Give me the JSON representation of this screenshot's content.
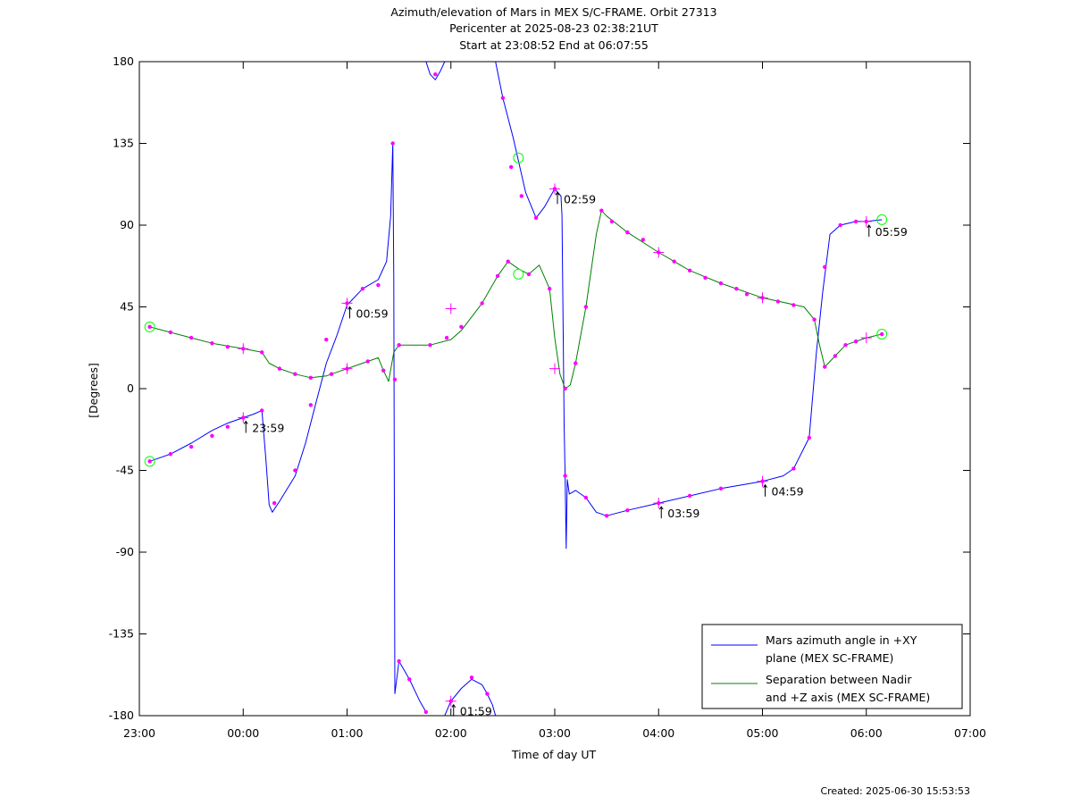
{
  "title_lines": [
    "Azimuth/elevation of Mars in MEX S/C-FRAME.  Orbit 27313",
    "Pericenter at 2025-08-23 02:38:21UT",
    "Start at 23:08:52 End at 06:07:55"
  ],
  "footer": "Created: 2025-06-30 15:53:53",
  "colors": {
    "azimuth": "#0000ff",
    "separation": "#008000",
    "markers": "#ff00ff",
    "endpoints": "#00ff00"
  },
  "chart_data": {
    "type": "line",
    "xlabel": "Time of day UT",
    "ylabel": "[Degrees]",
    "xlim": [
      23.0,
      31.0
    ],
    "ylim": [
      -180,
      180
    ],
    "xticks": [
      {
        "v": 23,
        "label": "23:00"
      },
      {
        "v": 24,
        "label": "00:00"
      },
      {
        "v": 25,
        "label": "01:00"
      },
      {
        "v": 26,
        "label": "02:00"
      },
      {
        "v": 27,
        "label": "03:00"
      },
      {
        "v": 28,
        "label": "04:00"
      },
      {
        "v": 29,
        "label": "05:00"
      },
      {
        "v": 30,
        "label": "06:00"
      },
      {
        "v": 31,
        "label": "07:00"
      }
    ],
    "yticks": [
      {
        "v": 180,
        "label": "180"
      },
      {
        "v": 135,
        "label": "135"
      },
      {
        "v": 90,
        "label": "90"
      },
      {
        "v": 45,
        "label": "45"
      },
      {
        "v": 0,
        "label": "0"
      },
      {
        "v": -45,
        "label": "-45"
      },
      {
        "v": -90,
        "label": "-90"
      },
      {
        "v": -135,
        "label": "-135"
      },
      {
        "v": -180,
        "label": "-180"
      }
    ],
    "legend": {
      "placement": "bottom-right",
      "entries": [
        {
          "series": "azimuth",
          "lines": [
            "Mars azimuth angle in +XY",
            "plane (MEX SC-FRAME)"
          ]
        },
        {
          "series": "separation",
          "lines": [
            "Separation between Nadir",
            "and +Z axis (MEX SC-FRAME)"
          ]
        }
      ]
    },
    "series": [
      {
        "key": "azimuth",
        "segments": [
          [
            [
              23.1,
              -40
            ],
            [
              23.3,
              -36
            ],
            [
              23.5,
              -30
            ],
            [
              23.7,
              -23
            ],
            [
              23.85,
              -19
            ],
            [
              24.0,
              -16
            ],
            [
              24.1,
              -14
            ],
            [
              24.18,
              -12
            ],
            [
              24.22,
              -40
            ],
            [
              24.25,
              -64
            ],
            [
              24.28,
              -68
            ],
            [
              24.35,
              -62
            ],
            [
              24.5,
              -48
            ],
            [
              24.6,
              -30
            ],
            [
              24.7,
              -8
            ],
            [
              24.8,
              14
            ],
            [
              24.9,
              29
            ],
            [
              25.0,
              46
            ],
            [
              25.15,
              55
            ],
            [
              25.3,
              60
            ],
            [
              25.38,
              70
            ],
            [
              25.42,
              95
            ],
            [
              25.44,
              135
            ],
            [
              25.45,
              60
            ],
            [
              25.46,
              -168
            ]
          ],
          [
            [
              25.46,
              -168
            ],
            [
              25.5,
              -150
            ],
            [
              25.6,
              -160
            ],
            [
              25.7,
              -172
            ],
            [
              25.76,
              -178
            ]
          ],
          [
            [
              25.76,
              180
            ],
            [
              25.8,
              173
            ],
            [
              25.85,
              170
            ],
            [
              25.9,
              175
            ],
            [
              25.94,
              180
            ]
          ],
          [
            [
              25.94,
              -180
            ],
            [
              26.0,
              -172
            ],
            [
              26.1,
              -165
            ],
            [
              26.2,
              -160
            ],
            [
              26.3,
              -163
            ],
            [
              26.35,
              -168
            ],
            [
              26.4,
              -174
            ],
            [
              26.43,
              -180
            ]
          ],
          [
            [
              26.43,
              180
            ],
            [
              26.5,
              160
            ],
            [
              26.6,
              138
            ],
            [
              26.72,
              108
            ],
            [
              26.82,
              94
            ],
            [
              26.9,
              100
            ],
            [
              27.0,
              110
            ],
            [
              27.06,
              106
            ],
            [
              27.07,
              95
            ],
            [
              27.09,
              -20
            ],
            [
              27.1,
              -48
            ],
            [
              27.11,
              -88
            ],
            [
              27.12,
              -50
            ],
            [
              27.14,
              -58
            ],
            [
              27.2,
              -56
            ],
            [
              27.3,
              -60
            ],
            [
              27.4,
              -68
            ],
            [
              27.5,
              -70
            ],
            [
              27.7,
              -67
            ],
            [
              28.0,
              -63
            ],
            [
              28.3,
              -59
            ],
            [
              28.6,
              -55
            ],
            [
              29.0,
              -51
            ],
            [
              29.2,
              -48
            ],
            [
              29.3,
              -44
            ],
            [
              29.45,
              -27
            ],
            [
              29.52,
              20
            ],
            [
              29.58,
              53
            ],
            [
              29.65,
              85
            ],
            [
              29.75,
              90
            ],
            [
              29.9,
              92
            ],
            [
              30.0,
              92
            ],
            [
              30.15,
              93
            ]
          ]
        ],
        "markers": [
          [
            23.1,
            -40
          ],
          [
            23.3,
            -36
          ],
          [
            23.5,
            -32
          ],
          [
            23.7,
            -26
          ],
          [
            23.85,
            -21
          ],
          [
            24.0,
            -16
          ],
          [
            24.18,
            -12
          ],
          [
            24.3,
            -63
          ],
          [
            24.5,
            -45
          ],
          [
            24.65,
            -9
          ],
          [
            24.8,
            27
          ],
          [
            25.0,
            47
          ],
          [
            25.15,
            55
          ],
          [
            25.3,
            57
          ],
          [
            25.44,
            135
          ],
          [
            25.46,
            5
          ],
          [
            25.5,
            -150
          ],
          [
            25.6,
            -160
          ],
          [
            25.76,
            -178
          ],
          [
            25.85,
            173
          ],
          [
            26.0,
            -172
          ],
          [
            26.2,
            -159
          ],
          [
            26.35,
            -168
          ],
          [
            26.5,
            160
          ],
          [
            26.58,
            122
          ],
          [
            26.68,
            106
          ],
          [
            26.82,
            94
          ],
          [
            27.0,
            110
          ],
          [
            27.1,
            -48
          ],
          [
            27.3,
            -60
          ],
          [
            27.5,
            -70
          ],
          [
            27.7,
            -67
          ],
          [
            28.0,
            -63
          ],
          [
            28.3,
            -59
          ],
          [
            28.6,
            -55
          ],
          [
            29.0,
            -51
          ],
          [
            29.3,
            -44
          ],
          [
            29.45,
            -27
          ],
          [
            29.6,
            67
          ],
          [
            29.75,
            90
          ],
          [
            29.9,
            92
          ],
          [
            30.0,
            92
          ]
        ],
        "plus_markers": [
          [
            24.0,
            -16
          ],
          [
            25.0,
            47
          ],
          [
            26.0,
            -172
          ],
          [
            27.0,
            110
          ],
          [
            28.0,
            -63
          ],
          [
            29.0,
            -51
          ],
          [
            30.0,
            92
          ]
        ],
        "endpoints": [
          [
            23.1,
            -40
          ],
          [
            26.65,
            127
          ],
          [
            30.15,
            93
          ]
        ]
      },
      {
        "key": "separation",
        "segments": [
          [
            [
              23.1,
              34
            ],
            [
              23.3,
              31
            ],
            [
              23.5,
              28
            ],
            [
              23.7,
              25
            ],
            [
              24.0,
              22
            ],
            [
              24.18,
              20
            ],
            [
              24.25,
              14
            ],
            [
              24.35,
              11
            ],
            [
              24.5,
              8
            ],
            [
              24.65,
              6
            ],
            [
              24.8,
              7
            ],
            [
              25.0,
              11
            ],
            [
              25.2,
              15
            ],
            [
              25.3,
              17
            ],
            [
              25.35,
              10
            ],
            [
              25.4,
              4
            ],
            [
              25.45,
              20
            ],
            [
              25.5,
              24
            ],
            [
              25.6,
              24
            ],
            [
              25.8,
              24
            ],
            [
              26.0,
              27
            ],
            [
              26.1,
              32
            ],
            [
              26.3,
              47
            ],
            [
              26.45,
              62
            ],
            [
              26.55,
              70
            ],
            [
              26.65,
              66
            ],
            [
              26.75,
              63
            ],
            [
              26.85,
              68
            ],
            [
              26.95,
              55
            ],
            [
              27.0,
              28
            ],
            [
              27.05,
              8
            ],
            [
              27.1,
              0
            ],
            [
              27.15,
              2
            ],
            [
              27.2,
              14
            ],
            [
              27.3,
              45
            ],
            [
              27.4,
              85
            ],
            [
              27.45,
              98
            ],
            [
              27.5,
              95
            ],
            [
              27.7,
              86
            ],
            [
              28.0,
              75
            ],
            [
              28.3,
              65
            ],
            [
              28.6,
              58
            ],
            [
              29.0,
              50
            ],
            [
              29.4,
              45
            ],
            [
              29.5,
              38
            ],
            [
              29.55,
              24
            ],
            [
              29.6,
              12
            ],
            [
              29.7,
              18
            ],
            [
              29.8,
              24
            ],
            [
              30.0,
              28
            ],
            [
              30.15,
              30
            ]
          ]
        ],
        "markers": [
          [
            23.1,
            34
          ],
          [
            23.3,
            31
          ],
          [
            23.5,
            28
          ],
          [
            23.7,
            25
          ],
          [
            23.85,
            23
          ],
          [
            24.0,
            22
          ],
          [
            24.18,
            20
          ],
          [
            24.35,
            11
          ],
          [
            24.5,
            8
          ],
          [
            24.65,
            6
          ],
          [
            24.85,
            8
          ],
          [
            25.0,
            11
          ],
          [
            25.2,
            15
          ],
          [
            25.35,
            10
          ],
          [
            25.5,
            24
          ],
          [
            25.8,
            24
          ],
          [
            25.96,
            28
          ],
          [
            26.1,
            34
          ],
          [
            26.3,
            47
          ],
          [
            26.45,
            62
          ],
          [
            26.55,
            70
          ],
          [
            26.75,
            63
          ],
          [
            26.95,
            55
          ],
          [
            27.1,
            0
          ],
          [
            27.2,
            14
          ],
          [
            27.3,
            45
          ],
          [
            27.45,
            98
          ],
          [
            27.55,
            92
          ],
          [
            27.7,
            86
          ],
          [
            27.85,
            82
          ],
          [
            28.0,
            75
          ],
          [
            28.15,
            70
          ],
          [
            28.3,
            65
          ],
          [
            28.45,
            61
          ],
          [
            28.6,
            58
          ],
          [
            28.75,
            55
          ],
          [
            28.85,
            52
          ],
          [
            29.0,
            50
          ],
          [
            29.15,
            48
          ],
          [
            29.3,
            46
          ],
          [
            29.5,
            38
          ],
          [
            29.6,
            12
          ],
          [
            29.7,
            18
          ],
          [
            29.8,
            24
          ],
          [
            29.9,
            26
          ],
          [
            30.15,
            30
          ]
        ],
        "plus_markers": [
          [
            24.0,
            22
          ],
          [
            25.0,
            11
          ],
          [
            26.0,
            44
          ],
          [
            27.0,
            11
          ],
          [
            28.0,
            75
          ],
          [
            29.0,
            50
          ],
          [
            30.0,
            28
          ]
        ],
        "endpoints": [
          [
            23.1,
            34
          ],
          [
            26.65,
            63
          ],
          [
            30.15,
            30
          ]
        ]
      }
    ],
    "annotations": [
      {
        "text": "23:59",
        "x": 24.0,
        "y": -16
      },
      {
        "text": "00:59",
        "x": 25.0,
        "y": 47
      },
      {
        "text": "01:59",
        "x": 26.0,
        "y": -172
      },
      {
        "text": "02:59",
        "x": 27.0,
        "y": 110
      },
      {
        "text": "03:59",
        "x": 28.0,
        "y": -63
      },
      {
        "text": "04:59",
        "x": 29.0,
        "y": -51
      },
      {
        "text": "05:59",
        "x": 30.0,
        "y": 92
      }
    ]
  }
}
